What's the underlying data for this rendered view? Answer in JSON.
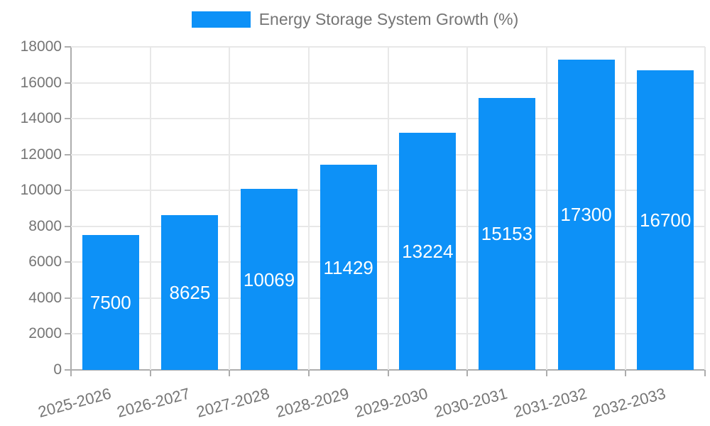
{
  "chart_data": {
    "type": "bar",
    "title": "",
    "legend_label": "Energy Storage System Growth (%)",
    "legend_position": "top-center",
    "categories": [
      "2025-2026",
      "2026-2027",
      "2027-2028",
      "2028-2029",
      "2029-2030",
      "2030-2031",
      "2031-2032",
      "2032-2033"
    ],
    "values": [
      7500,
      8625,
      10069,
      11429,
      13224,
      15153,
      17300,
      16700
    ],
    "xlabel": "",
    "ylabel": "",
    "ylim": [
      0,
      18000
    ],
    "yticks": [
      0,
      2000,
      4000,
      6000,
      8000,
      10000,
      12000,
      14000,
      16000,
      18000
    ],
    "grid": true,
    "colors": {
      "bar": "#0d91f7",
      "bar_label": "#ffffff",
      "grid": "#e8e8e8",
      "axis": "#adadad",
      "tick_label": "#757575",
      "background": "#ffffff"
    }
  }
}
